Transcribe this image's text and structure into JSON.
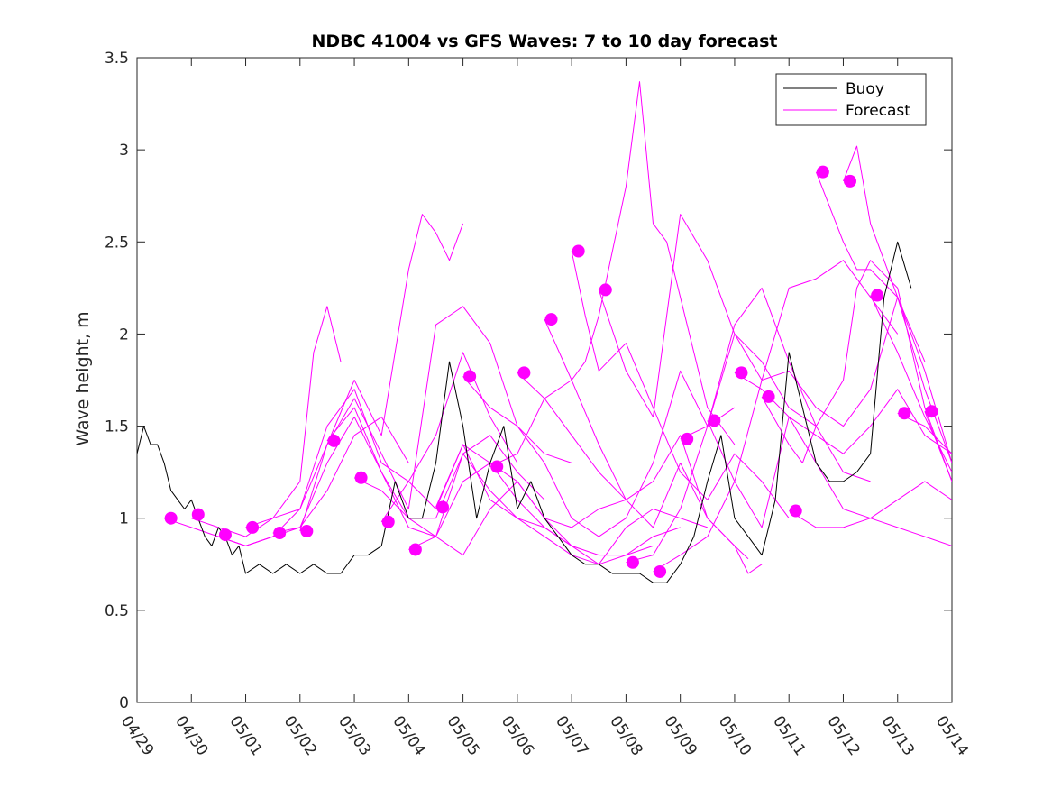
{
  "chart_data": {
    "type": "line",
    "title": "NDBC 41004 vs GFS Waves: 7 to 10 day forecast",
    "xlabel": "",
    "ylabel": "Wave height, m",
    "xlim": [
      "04/29",
      "05/14"
    ],
    "ylim": [
      0,
      3.5
    ],
    "x_ticks": [
      "04/29",
      "04/30",
      "05/01",
      "05/02",
      "05/03",
      "05/04",
      "05/05",
      "05/06",
      "05/07",
      "05/08",
      "05/09",
      "05/10",
      "05/11",
      "05/12",
      "05/13",
      "05/14"
    ],
    "y_ticks": [
      "0",
      "0.5",
      "1",
      "1.5",
      "2",
      "2.5",
      "3",
      "3.5"
    ],
    "grid": false,
    "legend": {
      "position": "top-right",
      "entries": [
        "Buoy",
        "Forecast"
      ]
    },
    "colors": {
      "buoy": "#000000",
      "forecast": "#ff00ff"
    },
    "series": [
      {
        "name": "Buoy",
        "style": "line",
        "x": [
          "04/29 00:00",
          "04/29 03:00",
          "04/29 06:00",
          "04/29 09:00",
          "04/29 12:00",
          "04/29 15:00",
          "04/29 18:00",
          "04/29 21:00",
          "04/30 00:00",
          "04/30 03:00",
          "04/30 06:00",
          "04/30 09:00",
          "04/30 12:00",
          "04/30 15:00",
          "04/30 18:00",
          "04/30 21:00",
          "05/01 00:00",
          "05/01 06:00",
          "05/01 12:00",
          "05/01 18:00",
          "05/02 00:00",
          "05/02 06:00",
          "05/02 12:00",
          "05/02 18:00",
          "05/03 00:00",
          "05/03 06:00",
          "05/03 12:00",
          "05/03 18:00",
          "05/04 00:00",
          "05/04 06:00",
          "05/04 12:00",
          "05/04 18:00",
          "05/05 00:00",
          "05/05 06:00",
          "05/05 12:00",
          "05/05 18:00",
          "05/06 00:00",
          "05/06 06:00",
          "05/06 12:00",
          "05/06 18:00",
          "05/07 00:00",
          "05/07 06:00",
          "05/07 12:00",
          "05/07 18:00",
          "05/08 00:00",
          "05/08 06:00",
          "05/08 12:00",
          "05/08 18:00",
          "05/09 00:00",
          "05/09 06:00",
          "05/09 12:00",
          "05/09 18:00",
          "05/10 00:00",
          "05/10 06:00",
          "05/10 12:00",
          "05/10 18:00",
          "05/11 00:00",
          "05/11 06:00",
          "05/11 12:00",
          "05/11 18:00",
          "05/12 00:00",
          "05/12 06:00",
          "05/12 12:00",
          "05/12 18:00",
          "05/13 00:00",
          "05/13 06:00"
        ],
        "y": [
          1.35,
          1.5,
          1.4,
          1.4,
          1.3,
          1.15,
          1.1,
          1.05,
          1.1,
          1.0,
          0.9,
          0.85,
          0.95,
          0.9,
          0.8,
          0.85,
          0.7,
          0.75,
          0.7,
          0.75,
          0.7,
          0.75,
          0.7,
          0.7,
          0.8,
          0.8,
          0.85,
          1.2,
          1.0,
          1.0,
          1.3,
          1.85,
          1.5,
          1.0,
          1.3,
          1.5,
          1.05,
          1.2,
          1.0,
          0.9,
          0.8,
          0.75,
          0.75,
          0.7,
          0.7,
          0.7,
          0.65,
          0.65,
          0.75,
          0.9,
          1.2,
          1.45,
          1.0,
          0.9,
          0.8,
          1.1,
          1.9,
          1.6,
          1.3,
          1.2,
          1.2,
          1.25,
          1.35,
          2.2,
          2.5,
          2.25
        ]
      },
      {
        "name": "Forecast",
        "style": "line",
        "x": [
          "04/29 12:00",
          "04/30 00:00",
          "04/30 12:00",
          "05/01 00:00",
          "05/01 12:00",
          "05/02 00:00",
          "05/02 12:00",
          "05/03 00:00",
          "05/03 12:00",
          "05/04 00:00"
        ],
        "y": [
          1.0,
          0.95,
          0.9,
          0.85,
          0.9,
          0.95,
          1.15,
          1.45,
          1.55,
          1.3
        ]
      },
      {
        "name": "",
        "style": "line",
        "x": [
          "04/30 00:00",
          "04/30 12:00",
          "05/01 00:00",
          "05/01 12:00",
          "05/02 00:00",
          "05/02 06:00",
          "05/02 12:00",
          "05/02 18:00"
        ],
        "y": [
          1.0,
          0.95,
          0.9,
          1.0,
          1.2,
          1.9,
          2.15,
          1.85
        ]
      },
      {
        "name": "",
        "style": "line",
        "x": [
          "04/30 12:00",
          "05/01 00:00",
          "05/01 12:00",
          "05/02 00:00",
          "05/02 12:00",
          "05/03 00:00",
          "05/03 12:00",
          "05/04 00:00",
          "05/04 06:00",
          "05/04 12:00",
          "05/04 18:00",
          "05/05 00:00"
        ],
        "y": [
          0.9,
          0.85,
          0.9,
          1.05,
          1.4,
          1.75,
          1.45,
          2.35,
          2.65,
          2.55,
          2.4,
          2.6
        ]
      },
      {
        "name": "",
        "style": "line",
        "x": [
          "05/01 00:00",
          "05/01 12:00",
          "05/02 00:00",
          "05/02 12:00",
          "05/03 00:00",
          "05/03 12:00",
          "05/04 00:00",
          "05/04 12:00",
          "05/05 00:00",
          "05/05 12:00",
          "05/06 00:00"
        ],
        "y": [
          0.95,
          1.0,
          1.05,
          1.5,
          1.7,
          1.3,
          1.2,
          1.45,
          1.9,
          1.55,
          1.3
        ]
      },
      {
        "name": "",
        "style": "line",
        "x": [
          "05/01 12:00",
          "05/02 00:00",
          "05/02 12:00",
          "05/03 00:00",
          "05/03 12:00",
          "05/04 00:00",
          "05/04 12:00",
          "05/05 00:00",
          "05/05 12:00",
          "05/06 00:00",
          "05/06 12:00"
        ],
        "y": [
          0.92,
          0.95,
          1.3,
          1.55,
          1.25,
          1.0,
          1.0,
          1.35,
          1.45,
          1.25,
          1.1
        ]
      },
      {
        "name": "",
        "style": "line",
        "x": [
          "05/02 00:00",
          "05/02 12:00",
          "05/03 00:00",
          "05/03 12:00",
          "05/04 00:00",
          "05/04 12:00",
          "05/05 00:00",
          "05/05 12:00",
          "05/06 00:00",
          "05/06 12:00",
          "05/07 00:00"
        ],
        "y": [
          0.93,
          1.4,
          1.65,
          1.35,
          1.05,
          2.05,
          2.15,
          1.95,
          1.5,
          1.35,
          1.3
        ]
      },
      {
        "name": "",
        "style": "line",
        "x": [
          "05/02 12:00",
          "05/03 00:00",
          "05/03 12:00",
          "05/04 00:00",
          "05/04 12:00",
          "05/05 00:00",
          "05/05 12:00",
          "05/06 00:00",
          "05/06 12:00",
          "05/07 00:00"
        ],
        "y": [
          1.42,
          1.6,
          1.25,
          0.95,
          0.9,
          1.35,
          1.15,
          1.0,
          0.95,
          0.85
        ]
      },
      {
        "name": "",
        "style": "line",
        "x": [
          "05/03 00:00",
          "05/03 12:00",
          "05/04 00:00",
          "05/04 12:00",
          "05/05 00:00",
          "05/05 12:00",
          "05/06 00:00",
          "05/06 12:00",
          "05/07 00:00",
          "05/07 12:00",
          "05/08 00:00"
        ],
        "y": [
          1.22,
          1.15,
          1.0,
          0.9,
          0.8,
          1.05,
          1.2,
          1.0,
          0.95,
          1.05,
          1.1
        ]
      },
      {
        "name": "",
        "style": "line",
        "x": [
          "05/03 12:00",
          "05/04 00:00",
          "05/04 12:00",
          "05/05 00:00",
          "05/05 12:00",
          "05/06 00:00",
          "05/06 12:00",
          "05/07 00:00",
          "05/07 12:00",
          "05/08 00:00",
          "05/08 12:00"
        ],
        "y": [
          0.98,
          1.2,
          1.05,
          1.4,
          1.3,
          1.1,
          0.95,
          0.85,
          0.8,
          0.8,
          0.85
        ]
      },
      {
        "name": "",
        "style": "line",
        "x": [
          "05/04 00:00",
          "05/04 12:00",
          "05/05 00:00",
          "05/05 12:00",
          "05/06 00:00",
          "05/06 12:00",
          "05/07 00:00",
          "05/07 12:00",
          "05/08 00:00",
          "05/08 12:00",
          "05/09 00:00"
        ],
        "y": [
          0.83,
          0.9,
          1.2,
          1.3,
          1.2,
          1.0,
          0.85,
          0.75,
          0.8,
          0.9,
          0.95
        ]
      },
      {
        "name": "",
        "style": "line",
        "x": [
          "05/04 12:00",
          "05/05 00:00",
          "05/05 12:00",
          "05/06 00:00",
          "05/06 12:00",
          "05/07 00:00",
          "05/07 12:00",
          "05/08 00:00",
          "05/08 12:00",
          "05/09 00:00",
          "05/09 12:00"
        ],
        "y": [
          1.06,
          1.4,
          1.1,
          1.0,
          0.9,
          0.8,
          0.75,
          0.95,
          1.05,
          1.0,
          0.95
        ]
      },
      {
        "name": "",
        "style": "line",
        "x": [
          "05/05 00:00",
          "05/05 12:00",
          "05/06 00:00",
          "05/06 12:00",
          "05/07 00:00",
          "05/07 12:00",
          "05/08 00:00",
          "05/08 12:00",
          "05/09 00:00",
          "05/09 12:00",
          "05/10 00:00"
        ],
        "y": [
          1.77,
          1.6,
          1.5,
          1.3,
          1.0,
          0.9,
          1.0,
          1.3,
          1.8,
          1.5,
          1.6
        ]
      },
      {
        "name": "",
        "style": "line",
        "x": [
          "05/05 12:00",
          "05/06 00:00",
          "05/06 12:00",
          "05/07 00:00",
          "05/07 12:00",
          "05/08 00:00",
          "05/08 12:00",
          "05/09 00:00",
          "05/09 12:00",
          "05/10 00:00",
          "05/10 06:00"
        ],
        "y": [
          1.28,
          1.35,
          1.65,
          1.75,
          1.4,
          1.1,
          0.95,
          1.3,
          1.0,
          0.85,
          0.78
        ]
      },
      {
        "name": "",
        "style": "line",
        "x": [
          "05/06 00:00",
          "05/06 12:00",
          "05/07 00:00",
          "05/07 12:00",
          "05/08 00:00",
          "05/08 12:00",
          "05/09 00:00",
          "05/09 12:00",
          "05/10 00:00",
          "05/10 06:00",
          "05/10 12:00"
        ],
        "y": [
          1.79,
          1.65,
          1.45,
          1.25,
          1.1,
          1.2,
          1.45,
          1.0,
          0.85,
          0.7,
          0.75
        ]
      },
      {
        "name": "",
        "style": "line",
        "x": [
          "05/06 12:00",
          "05/07 00:00",
          "05/07 06:00",
          "05/07 12:00",
          "05/08 00:00",
          "05/08 06:00",
          "05/08 12:00",
          "05/08 18:00",
          "05/09 00:00",
          "05/09 12:00",
          "05/10 00:00"
        ],
        "y": [
          2.08,
          1.75,
          1.85,
          2.1,
          2.8,
          3.37,
          2.6,
          2.5,
          2.2,
          1.6,
          1.4
        ]
      },
      {
        "name": "",
        "style": "line",
        "x": [
          "05/07 00:00",
          "05/07 06:00",
          "05/07 12:00",
          "05/08 00:00",
          "05/08 12:00",
          "05/09 00:00",
          "05/09 12:00",
          "05/10 00:00",
          "05/10 12:00",
          "05/11 00:00"
        ],
        "y": [
          2.45,
          2.1,
          1.8,
          1.95,
          1.6,
          1.25,
          1.1,
          1.35,
          1.2,
          1.0
        ]
      },
      {
        "name": "",
        "style": "line",
        "x": [
          "05/07 12:00",
          "05/08 00:00",
          "05/08 12:00",
          "05/09 00:00",
          "05/09 12:00",
          "05/10 00:00",
          "05/10 12:00",
          "05/11 00:00",
          "05/11 12:00"
        ],
        "y": [
          2.24,
          1.8,
          1.55,
          2.65,
          2.4,
          2.0,
          1.85,
          1.6,
          1.5
        ]
      },
      {
        "name": "",
        "style": "line",
        "x": [
          "05/08 00:00",
          "05/08 12:00",
          "05/09 00:00",
          "05/09 12:00",
          "05/10 00:00",
          "05/10 12:00",
          "05/11 00:00",
          "05/11 12:00",
          "05/12 00:00",
          "05/12 12:00"
        ],
        "y": [
          0.76,
          0.8,
          1.05,
          1.5,
          2.05,
          2.25,
          1.85,
          1.5,
          1.25,
          1.2
        ]
      },
      {
        "name": "",
        "style": "line",
        "x": [
          "05/08 12:00",
          "05/09 00:00",
          "05/09 12:00",
          "05/10 00:00",
          "05/10 12:00",
          "05/11 00:00",
          "05/11 12:00",
          "05/12 00:00",
          "05/12 12:00",
          "05/13 00:00"
        ],
        "y": [
          0.71,
          0.8,
          0.9,
          1.2,
          1.75,
          2.25,
          2.3,
          2.4,
          2.2,
          2.0
        ]
      },
      {
        "name": "",
        "style": "line",
        "x": [
          "05/09 00:00",
          "05/09 12:00",
          "05/10 00:00",
          "05/10 12:00",
          "05/11 00:00",
          "05/11 12:00",
          "05/12 00:00",
          "05/12 12:00",
          "05/13 00:00",
          "05/13 12:00"
        ],
        "y": [
          1.43,
          1.5,
          2.0,
          1.75,
          1.8,
          1.6,
          1.5,
          1.7,
          2.2,
          1.85
        ]
      },
      {
        "name": "",
        "style": "line",
        "x": [
          "05/09 12:00",
          "05/10 00:00",
          "05/10 12:00",
          "05/11 00:00",
          "05/11 12:00",
          "05/12 00:00",
          "05/12 12:00",
          "05/13 00:00",
          "05/13 12:00",
          "05/14 00:00"
        ],
        "y": [
          1.53,
          1.2,
          0.95,
          1.55,
          1.3,
          1.05,
          1.0,
          0.95,
          0.9,
          0.85
        ]
      },
      {
        "name": "",
        "style": "line",
        "x": [
          "05/10 00:00",
          "05/10 12:00",
          "05/11 00:00",
          "05/11 12:00",
          "05/12 00:00",
          "05/12 12:00",
          "05/13 00:00",
          "05/13 12:00",
          "05/14 00:00"
        ],
        "y": [
          1.79,
          1.7,
          1.55,
          1.45,
          1.35,
          1.5,
          1.7,
          1.45,
          1.35
        ]
      },
      {
        "name": "",
        "style": "line",
        "x": [
          "05/10 12:00",
          "05/11 00:00",
          "05/11 06:00",
          "05/11 12:00",
          "05/12 00:00",
          "05/12 06:00",
          "05/12 12:00",
          "05/13 00:00",
          "05/13 12:00",
          "05/14 00:00"
        ],
        "y": [
          1.66,
          1.4,
          1.3,
          1.5,
          1.75,
          2.25,
          2.4,
          2.25,
          1.6,
          1.2
        ]
      },
      {
        "name": "",
        "style": "line",
        "x": [
          "05/11 00:00",
          "05/11 12:00",
          "05/12 00:00",
          "05/12 12:00",
          "05/13 00:00",
          "05/13 12:00",
          "05/14 00:00"
        ],
        "y": [
          1.04,
          0.95,
          0.95,
          1.0,
          1.1,
          1.2,
          1.1
        ]
      },
      {
        "name": "",
        "style": "line",
        "x": [
          "05/11 12:00",
          "05/12 00:00",
          "05/12 06:00",
          "05/12 12:00",
          "05/13 00:00",
          "05/13 12:00",
          "05/14 00:00"
        ],
        "y": [
          2.88,
          2.5,
          2.35,
          2.35,
          2.2,
          1.7,
          1.3
        ]
      },
      {
        "name": "",
        "style": "line",
        "x": [
          "05/12 00:00",
          "05/12 06:00",
          "05/12 12:00",
          "05/13 00:00",
          "05/13 12:00",
          "05/14 00:00"
        ],
        "y": [
          2.83,
          3.02,
          2.6,
          2.2,
          1.8,
          1.3
        ]
      },
      {
        "name": "",
        "style": "line",
        "x": [
          "05/12 12:00",
          "05/13 00:00",
          "05/13 12:00",
          "05/14 00:00"
        ],
        "y": [
          2.21,
          1.9,
          1.55,
          1.25
        ]
      },
      {
        "name": "",
        "style": "line",
        "x": [
          "05/13 00:00",
          "05/13 12:00",
          "05/14 00:00"
        ],
        "y": [
          1.57,
          1.5,
          1.35
        ]
      },
      {
        "name": "",
        "style": "line",
        "x": [
          "05/13 12:00",
          "05/14 00:00"
        ],
        "y": [
          1.58,
          1.2
        ]
      },
      {
        "name": "",
        "style": "markers",
        "x": [
          "04/29 15:00",
          "04/30 03:00",
          "04/30 15:00",
          "05/01 03:00",
          "05/01 15:00",
          "05/02 03:00",
          "05/02 15:00",
          "05/03 03:00",
          "05/03 15:00",
          "05/04 03:00",
          "05/04 15:00",
          "05/05 03:00",
          "05/05 15:00",
          "05/06 03:00",
          "05/06 15:00",
          "05/07 03:00",
          "05/07 15:00",
          "05/08 03:00",
          "05/08 15:00",
          "05/09 03:00",
          "05/09 15:00",
          "05/10 03:00",
          "05/10 15:00",
          "05/11 03:00",
          "05/11 15:00",
          "05/12 03:00",
          "05/12 15:00",
          "05/13 03:00",
          "05/13 15:00"
        ],
        "y": [
          1.0,
          1.02,
          0.91,
          0.95,
          0.92,
          0.93,
          1.42,
          1.22,
          0.98,
          0.83,
          1.06,
          1.77,
          1.28,
          1.79,
          2.08,
          2.45,
          2.24,
          0.76,
          0.71,
          1.43,
          1.53,
          1.79,
          1.66,
          1.04,
          2.88,
          2.83,
          2.21,
          1.57,
          1.58
        ]
      }
    ]
  }
}
